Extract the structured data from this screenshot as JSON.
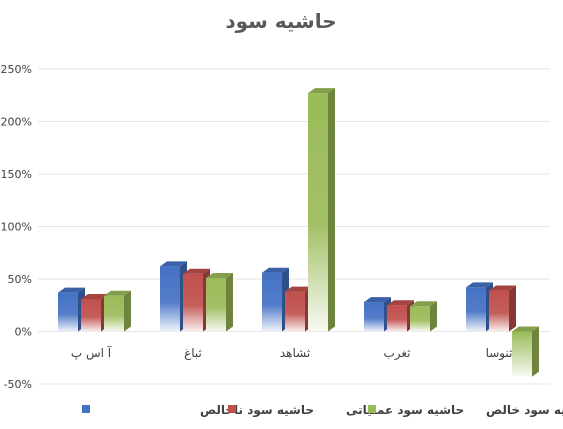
{
  "chart_data": {
    "type": "bar",
    "title": "حاشیه سود",
    "xlabel": "",
    "ylabel": "",
    "categories": [
      "آ اس پ",
      "ثباغ",
      "ثشاهد",
      "ثغرب",
      "ثنوسا"
    ],
    "y_ticks": [
      "-50%",
      "0%",
      "50%",
      "100%",
      "150%",
      "200%",
      "250%"
    ],
    "ylim": [
      -50,
      250
    ],
    "grid": true,
    "legend_position": "bottom",
    "series": [
      {
        "name": "حاشیه سود ناخالص",
        "values": [
          37,
          62,
          56,
          28,
          42
        ],
        "color": "#4472c4"
      },
      {
        "name": "حاشیه سود عملیاتی",
        "values": [
          31,
          55,
          38,
          25,
          39
        ],
        "color": "#c0504d"
      },
      {
        "name": "حاشیه سود خالص",
        "values": [
          34,
          51,
          227,
          24,
          -43
        ],
        "color": "#9bbb59"
      }
    ]
  }
}
